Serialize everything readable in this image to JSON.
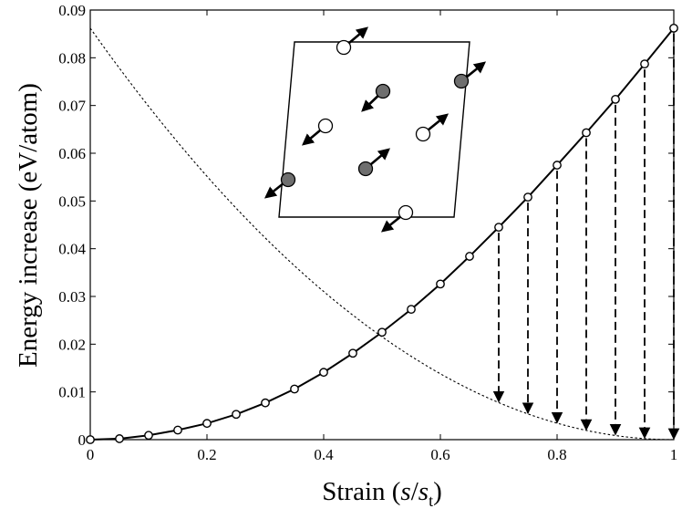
{
  "chart_data": {
    "type": "line",
    "title": "",
    "xlabel": {
      "prefix": "Strain (",
      "var_s": "s",
      "slash": "/",
      "var_st": "s",
      "sub": "t",
      "suffix": ")"
    },
    "ylabel": "Energy increase (eV/atom)",
    "xlim": [
      0,
      1
    ],
    "ylim": [
      0,
      0.09
    ],
    "xticks": [
      0,
      0.2,
      0.4,
      0.6,
      0.8,
      1
    ],
    "xtick_labels": [
      "0",
      "0.2",
      "0.4",
      "0.6",
      "0.8",
      "1"
    ],
    "yticks": [
      0,
      0.01,
      0.02,
      0.03,
      0.04,
      0.05,
      0.06,
      0.07,
      0.08,
      0.09
    ],
    "ytick_labels": [
      "0",
      "0.01",
      "0.02",
      "0.03",
      "0.04",
      "0.05",
      "0.06",
      "0.07",
      "0.08",
      "0.09"
    ],
    "grid": false,
    "series": [
      {
        "name": "energy",
        "style": "solid line with open circle markers",
        "color": "#000000",
        "x": [
          0,
          0.05,
          0.1,
          0.15,
          0.2,
          0.25,
          0.3,
          0.35,
          0.4,
          0.45,
          0.5,
          0.55,
          0.6,
          0.65,
          0.7,
          0.75,
          0.8,
          0.85,
          0.9,
          0.95,
          1
        ],
        "y": [
          0,
          0.0002,
          0.0009,
          0.002,
          0.0034,
          0.0053,
          0.0077,
          0.0106,
          0.0141,
          0.0181,
          0.0225,
          0.0273,
          0.0326,
          0.0384,
          0.0445,
          0.0508,
          0.0575,
          0.0643,
          0.0713,
          0.0787,
          0.0862
        ]
      },
      {
        "name": "relaxation",
        "style": "dotted",
        "color": "#000000",
        "formula": "0.0862*(1-x)^2"
      }
    ],
    "arrows": [
      {
        "x": 0.7,
        "from": 0.0445,
        "to": 0.0078
      },
      {
        "x": 0.75,
        "from": 0.0508,
        "to": 0.0054
      },
      {
        "x": 0.8,
        "from": 0.0575,
        "to": 0.0034
      },
      {
        "x": 0.85,
        "from": 0.0643,
        "to": 0.0019
      },
      {
        "x": 0.9,
        "from": 0.0713,
        "to": 0.0009
      },
      {
        "x": 0.95,
        "from": 0.0787,
        "to": 0.0002
      },
      {
        "x": 1.0,
        "from": 0.0862,
        "to": 0.0
      }
    ],
    "inset": {
      "description": "sheared unit cell with atoms and displacement arrows",
      "colors": {
        "filled": "#6e6e6e",
        "open": "#ffffff",
        "line": "#000000"
      }
    }
  }
}
